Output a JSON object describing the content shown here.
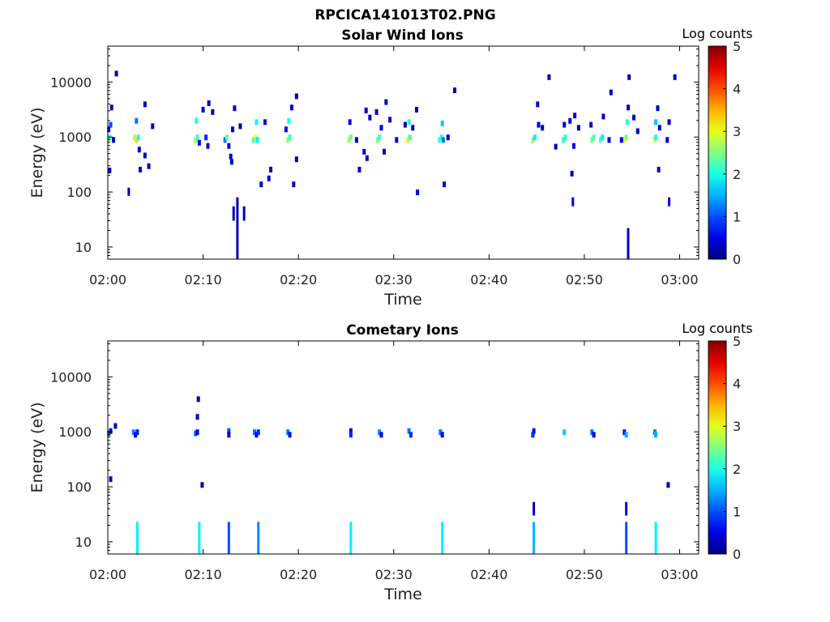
{
  "figure_title": "RPCICA141013T02.PNG",
  "chart_data": [
    {
      "type": "heatmap",
      "title": "Solar Wind Ions",
      "xlabel": "Time",
      "ylabel": "Energy (eV)",
      "x_range": [
        "02:00",
        "03:02"
      ],
      "y_scale": "log",
      "y_range": [
        6,
        45000
      ],
      "x_ticks": [
        "02:00",
        "02:10",
        "02:20",
        "02:30",
        "02:40",
        "02:50",
        "03:00"
      ],
      "y_ticks": [
        "10",
        "100",
        "1000",
        "10000"
      ],
      "y_tick_values": [
        10,
        100,
        1000,
        10000
      ],
      "colorbar": {
        "label": "Log counts",
        "range": [
          0,
          5
        ],
        "ticks": [
          "0",
          "1",
          "2",
          "3",
          "4",
          "5"
        ],
        "colormap": "jet"
      },
      "points": [
        {
          "t": 0.1,
          "e": 900,
          "v": 3.0
        },
        {
          "t": 0.2,
          "e": 1000,
          "v": 2.2
        },
        {
          "t": 0.3,
          "e": 1700,
          "v": 1.0
        },
        {
          "t": 0.1,
          "e": 1400,
          "v": 0.6
        },
        {
          "t": 0.2,
          "e": 250,
          "v": 0.3
        },
        {
          "t": 0.6,
          "e": 900,
          "v": 0.4
        },
        {
          "t": 0.9,
          "e": 14500,
          "v": 0.2
        },
        {
          "t": 0.4,
          "e": 3500,
          "v": 0.3
        },
        {
          "t": 2.8,
          "e": 1000,
          "v": 2.8
        },
        {
          "t": 3.0,
          "e": 900,
          "v": 3.3
        },
        {
          "t": 3.2,
          "e": 1000,
          "v": 2.0
        },
        {
          "t": 3.0,
          "e": 2000,
          "v": 1.2
        },
        {
          "t": 3.3,
          "e": 600,
          "v": 0.3
        },
        {
          "t": 3.4,
          "e": 260,
          "v": 0.4
        },
        {
          "t": 3.9,
          "e": 4000,
          "v": 0.3
        },
        {
          "t": 3.9,
          "e": 470,
          "v": 0.4
        },
        {
          "t": 4.3,
          "e": 300,
          "v": 0.3
        },
        {
          "t": 4.7,
          "e": 1600,
          "v": 0.3
        },
        {
          "t": 9.2,
          "e": 900,
          "v": 2.6
        },
        {
          "t": 9.4,
          "e": 1000,
          "v": 2.2
        },
        {
          "t": 9.3,
          "e": 2000,
          "v": 2.0
        },
        {
          "t": 9.6,
          "e": 800,
          "v": 0.4
        },
        {
          "t": 10.0,
          "e": 3200,
          "v": 0.4
        },
        {
          "t": 10.3,
          "e": 1000,
          "v": 0.8
        },
        {
          "t": 10.5,
          "e": 700,
          "v": 0.4
        },
        {
          "t": 10.6,
          "e": 4200,
          "v": 0.3
        },
        {
          "t": 11.0,
          "e": 2900,
          "v": 0.3
        },
        {
          "t": 12.3,
          "e": 900,
          "v": 1.2
        },
        {
          "t": 12.5,
          "e": 1000,
          "v": 2.4
        },
        {
          "t": 12.7,
          "e": 700,
          "v": 0.4
        },
        {
          "t": 12.9,
          "e": 450,
          "v": 0.3
        },
        {
          "t": 13.1,
          "e": 1400,
          "v": 0.3
        },
        {
          "t": 13.3,
          "e": 3400,
          "v": 0.3
        },
        {
          "t": 13.0,
          "e": 360,
          "v": 0.3
        },
        {
          "t": 13.9,
          "e": 1600,
          "v": 0.3
        },
        {
          "t": 15.3,
          "e": 900,
          "v": 2.2
        },
        {
          "t": 15.5,
          "e": 1000,
          "v": 3.0
        },
        {
          "t": 15.7,
          "e": 900,
          "v": 1.8
        },
        {
          "t": 15.6,
          "e": 1900,
          "v": 1.9
        },
        {
          "t": 16.1,
          "e": 140,
          "v": 0.4
        },
        {
          "t": 16.9,
          "e": 180,
          "v": 0.4
        },
        {
          "t": 17.1,
          "e": 260,
          "v": 0.3
        },
        {
          "t": 16.5,
          "e": 1900,
          "v": 0.4
        },
        {
          "t": 18.9,
          "e": 900,
          "v": 2.6
        },
        {
          "t": 19.1,
          "e": 1000,
          "v": 2.1
        },
        {
          "t": 19.0,
          "e": 2000,
          "v": 1.9
        },
        {
          "t": 18.7,
          "e": 1400,
          "v": 0.6
        },
        {
          "t": 19.3,
          "e": 3500,
          "v": 0.3
        },
        {
          "t": 19.5,
          "e": 140,
          "v": 0.4
        },
        {
          "t": 19.8,
          "e": 400,
          "v": 0.3
        },
        {
          "t": 19.8,
          "e": 5600,
          "v": 0.3
        },
        {
          "t": 25.3,
          "e": 900,
          "v": 2.7
        },
        {
          "t": 25.5,
          "e": 1000,
          "v": 2.4
        },
        {
          "t": 25.4,
          "e": 1900,
          "v": 0.4
        },
        {
          "t": 26.1,
          "e": 900,
          "v": 0.4
        },
        {
          "t": 26.4,
          "e": 260,
          "v": 0.3
        },
        {
          "t": 26.9,
          "e": 550,
          "v": 0.4
        },
        {
          "t": 27.2,
          "e": 420,
          "v": 0.3
        },
        {
          "t": 27.1,
          "e": 3100,
          "v": 0.3
        },
        {
          "t": 27.5,
          "e": 2300,
          "v": 0.3
        },
        {
          "t": 28.3,
          "e": 900,
          "v": 2.5
        },
        {
          "t": 28.5,
          "e": 1000,
          "v": 2.2
        },
        {
          "t": 28.7,
          "e": 1500,
          "v": 0.4
        },
        {
          "t": 28.2,
          "e": 2900,
          "v": 0.3
        },
        {
          "t": 29.2,
          "e": 4400,
          "v": 0.3
        },
        {
          "t": 29.6,
          "e": 2100,
          "v": 0.3
        },
        {
          "t": 29.0,
          "e": 550,
          "v": 0.3
        },
        {
          "t": 30.3,
          "e": 900,
          "v": 0.5
        },
        {
          "t": 31.5,
          "e": 900,
          "v": 3.2
        },
        {
          "t": 31.7,
          "e": 1000,
          "v": 2.2
        },
        {
          "t": 31.6,
          "e": 1900,
          "v": 2.0
        },
        {
          "t": 32.0,
          "e": 1500,
          "v": 0.4
        },
        {
          "t": 32.4,
          "e": 3200,
          "v": 0.3
        },
        {
          "t": 32.5,
          "e": 100,
          "v": 0.4
        },
        {
          "t": 31.2,
          "e": 1700,
          "v": 0.3
        },
        {
          "t": 34.8,
          "e": 900,
          "v": 2.2
        },
        {
          "t": 35.0,
          "e": 1000,
          "v": 2.0
        },
        {
          "t": 35.2,
          "e": 900,
          "v": 1.2
        },
        {
          "t": 35.1,
          "e": 1800,
          "v": 1.6
        },
        {
          "t": 35.7,
          "e": 1000,
          "v": 0.4
        },
        {
          "t": 35.3,
          "e": 140,
          "v": 0.4
        },
        {
          "t": 36.4,
          "e": 7200,
          "v": 0.3
        },
        {
          "t": 44.6,
          "e": 900,
          "v": 2.6
        },
        {
          "t": 44.8,
          "e": 1000,
          "v": 1.8
        },
        {
          "t": 45.2,
          "e": 1700,
          "v": 0.5
        },
        {
          "t": 45.1,
          "e": 4000,
          "v": 0.3
        },
        {
          "t": 45.6,
          "e": 1500,
          "v": 0.4
        },
        {
          "t": 46.3,
          "e": 12500,
          "v": 0.2
        },
        {
          "t": 47.0,
          "e": 680,
          "v": 0.3
        },
        {
          "t": 47.8,
          "e": 900,
          "v": 2.2
        },
        {
          "t": 48.0,
          "e": 1000,
          "v": 2.0
        },
        {
          "t": 47.9,
          "e": 1700,
          "v": 0.5
        },
        {
          "t": 48.7,
          "e": 220,
          "v": 0.3
        },
        {
          "t": 48.9,
          "e": 700,
          "v": 0.5
        },
        {
          "t": 48.5,
          "e": 2000,
          "v": 0.4
        },
        {
          "t": 49.0,
          "e": 2500,
          "v": 0.3
        },
        {
          "t": 49.4,
          "e": 1500,
          "v": 0.3
        },
        {
          "t": 50.8,
          "e": 900,
          "v": 2.5
        },
        {
          "t": 51.0,
          "e": 1000,
          "v": 2.2
        },
        {
          "t": 51.7,
          "e": 900,
          "v": 2.3
        },
        {
          "t": 51.9,
          "e": 1000,
          "v": 1.8
        },
        {
          "t": 50.7,
          "e": 1700,
          "v": 0.4
        },
        {
          "t": 52.6,
          "e": 900,
          "v": 0.4
        },
        {
          "t": 52.0,
          "e": 2400,
          "v": 0.3
        },
        {
          "t": 52.8,
          "e": 6600,
          "v": 0.2
        },
        {
          "t": 54.2,
          "e": 900,
          "v": 3.2
        },
        {
          "t": 54.4,
          "e": 1000,
          "v": 2.4
        },
        {
          "t": 54.5,
          "e": 1900,
          "v": 2.0
        },
        {
          "t": 53.9,
          "e": 900,
          "v": 0.6
        },
        {
          "t": 54.6,
          "e": 3500,
          "v": 0.3
        },
        {
          "t": 54.7,
          "e": 12500,
          "v": 0.2
        },
        {
          "t": 55.2,
          "e": 2300,
          "v": 0.3
        },
        {
          "t": 55.6,
          "e": 1300,
          "v": 0.3
        },
        {
          "t": 57.4,
          "e": 900,
          "v": 3.0
        },
        {
          "t": 57.5,
          "e": 1000,
          "v": 2.0
        },
        {
          "t": 57.5,
          "e": 1900,
          "v": 1.6
        },
        {
          "t": 57.9,
          "e": 1500,
          "v": 0.4
        },
        {
          "t": 57.7,
          "e": 3400,
          "v": 0.3
        },
        {
          "t": 58.7,
          "e": 900,
          "v": 0.4
        },
        {
          "t": 58.9,
          "e": 1900,
          "v": 0.3
        },
        {
          "t": 57.8,
          "e": 260,
          "v": 0.3
        },
        {
          "t": 59.5,
          "e": 12500,
          "v": 0.2
        }
      ],
      "vertical_streaks": [
        {
          "t": 2.2,
          "emin": 85,
          "emax": 120,
          "v": 0.3
        },
        {
          "t": 13.2,
          "emin": 30,
          "emax": 55,
          "v": 0.3
        },
        {
          "t": 13.6,
          "emin": 6,
          "emax": 80,
          "v": 0.2
        },
        {
          "t": 14.3,
          "emin": 30,
          "emax": 55,
          "v": 0.3
        },
        {
          "t": 48.8,
          "emin": 55,
          "emax": 80,
          "v": 0.5
        },
        {
          "t": 54.6,
          "emin": 6,
          "emax": 22,
          "v": 0.3
        },
        {
          "t": 58.9,
          "emin": 55,
          "emax": 80,
          "v": 0.5
        }
      ]
    },
    {
      "type": "heatmap",
      "title": "Cometary Ions",
      "xlabel": "Time",
      "ylabel": "Energy (eV)",
      "x_range": [
        "02:00",
        "03:02"
      ],
      "y_scale": "log",
      "y_range": [
        6,
        45000
      ],
      "x_ticks": [
        "02:00",
        "02:10",
        "02:20",
        "02:30",
        "02:40",
        "02:50",
        "03:00"
      ],
      "y_ticks": [
        "10",
        "100",
        "1000",
        "10000"
      ],
      "y_tick_values": [
        10,
        100,
        1000,
        10000
      ],
      "colorbar": {
        "label": "Log counts",
        "range": [
          0,
          5
        ],
        "ticks": [
          "0",
          "1",
          "2",
          "3",
          "4",
          "5"
        ],
        "colormap": "jet"
      },
      "points": [
        {
          "t": 0.1,
          "e": 950,
          "v": 1.2
        },
        {
          "t": 0.3,
          "e": 1050,
          "v": 0.5
        },
        {
          "t": 0.8,
          "e": 1300,
          "v": 0.3
        },
        {
          "t": 0.3,
          "e": 140,
          "v": 0.4
        },
        {
          "t": 2.7,
          "e": 1000,
          "v": 1.3
        },
        {
          "t": 2.9,
          "e": 900,
          "v": 0.6
        },
        {
          "t": 3.1,
          "e": 1000,
          "v": 0.7
        },
        {
          "t": 9.2,
          "e": 950,
          "v": 1.2
        },
        {
          "t": 9.4,
          "e": 1000,
          "v": 0.6
        },
        {
          "t": 9.4,
          "e": 1900,
          "v": 0.4
        },
        {
          "t": 9.5,
          "e": 4000,
          "v": 0.3
        },
        {
          "t": 9.9,
          "e": 110,
          "v": 0.3
        },
        {
          "t": 12.7,
          "e": 1050,
          "v": 1.0
        },
        {
          "t": 12.7,
          "e": 900,
          "v": 0.4
        },
        {
          "t": 15.4,
          "e": 1000,
          "v": 1.2
        },
        {
          "t": 15.6,
          "e": 900,
          "v": 0.6
        },
        {
          "t": 15.8,
          "e": 1000,
          "v": 0.8
        },
        {
          "t": 18.9,
          "e": 1000,
          "v": 1.2
        },
        {
          "t": 19.1,
          "e": 900,
          "v": 0.6
        },
        {
          "t": 25.5,
          "e": 1050,
          "v": 0.5
        },
        {
          "t": 25.5,
          "e": 900,
          "v": 0.8
        },
        {
          "t": 28.5,
          "e": 1000,
          "v": 1.3
        },
        {
          "t": 28.7,
          "e": 900,
          "v": 0.6
        },
        {
          "t": 31.6,
          "e": 1050,
          "v": 1.2
        },
        {
          "t": 31.8,
          "e": 900,
          "v": 0.8
        },
        {
          "t": 34.9,
          "e": 1000,
          "v": 1.2
        },
        {
          "t": 35.1,
          "e": 900,
          "v": 0.6
        },
        {
          "t": 44.7,
          "e": 1050,
          "v": 0.5
        },
        {
          "t": 44.6,
          "e": 900,
          "v": 0.8
        },
        {
          "t": 47.9,
          "e": 1000,
          "v": 1.6
        },
        {
          "t": 50.8,
          "e": 1000,
          "v": 1.2
        },
        {
          "t": 51.0,
          "e": 900,
          "v": 0.5
        },
        {
          "t": 54.2,
          "e": 1000,
          "v": 0.7
        },
        {
          "t": 54.4,
          "e": 900,
          "v": 1.5
        },
        {
          "t": 57.4,
          "e": 1000,
          "v": 1.2
        },
        {
          "t": 57.5,
          "e": 900,
          "v": 1.5
        },
        {
          "t": 58.8,
          "e": 110,
          "v": 0.3
        }
      ],
      "vertical_streaks": [
        {
          "t": 3.1,
          "emin": 6,
          "emax": 23,
          "v": 1.8
        },
        {
          "t": 9.6,
          "emin": 6,
          "emax": 23,
          "v": 1.8
        },
        {
          "t": 12.7,
          "emin": 6,
          "emax": 23,
          "v": 1.0
        },
        {
          "t": 15.8,
          "emin": 6,
          "emax": 23,
          "v": 1.3
        },
        {
          "t": 25.5,
          "emin": 6,
          "emax": 23,
          "v": 1.8
        },
        {
          "t": 35.1,
          "emin": 6,
          "emax": 23,
          "v": 1.8
        },
        {
          "t": 44.7,
          "emin": 6,
          "emax": 23,
          "v": 1.5
        },
        {
          "t": 44.7,
          "emin": 30,
          "emax": 53,
          "v": 0.3
        },
        {
          "t": 54.4,
          "emin": 6,
          "emax": 23,
          "v": 1.0
        },
        {
          "t": 54.4,
          "emin": 30,
          "emax": 53,
          "v": 0.3
        },
        {
          "t": 57.5,
          "emin": 6,
          "emax": 23,
          "v": 1.8
        }
      ]
    }
  ]
}
